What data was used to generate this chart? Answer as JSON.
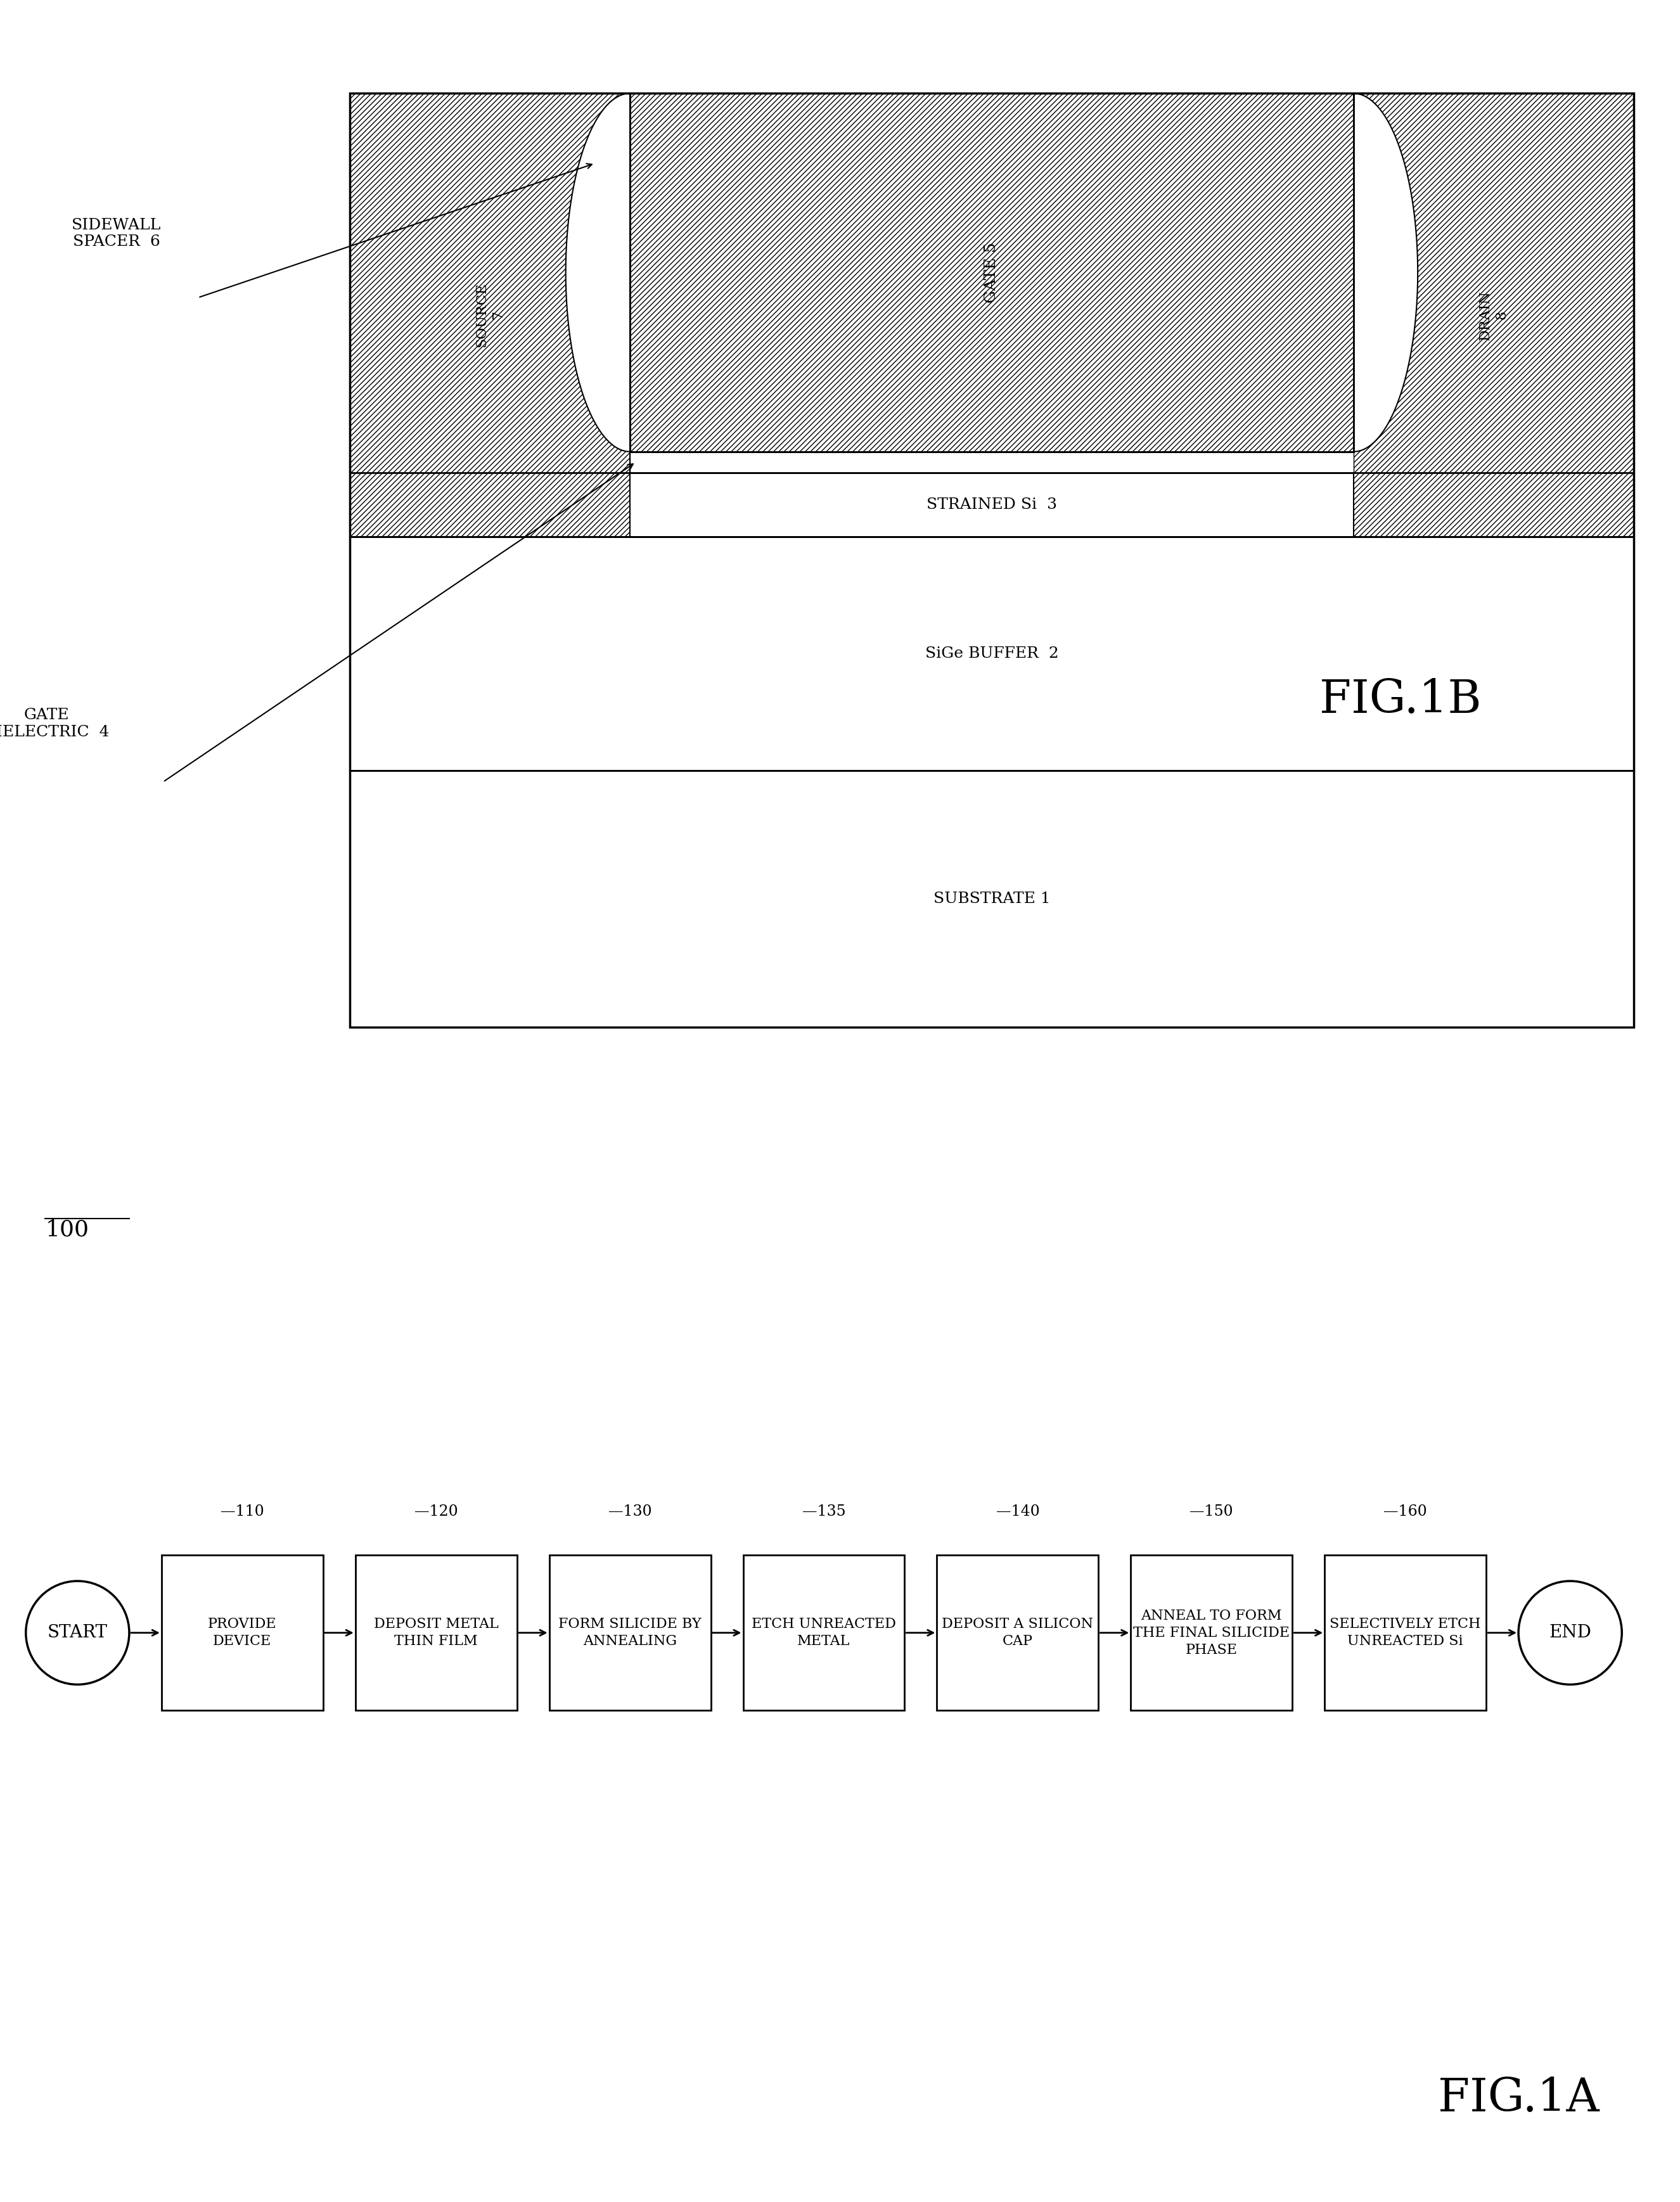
{
  "fig_width": 26.51,
  "fig_height": 34.75,
  "bg_color": "#ffffff",
  "flow_steps": [
    {
      "id": "110",
      "label": "PROVIDE\nDEVICE"
    },
    {
      "id": "120",
      "label": "DEPOSIT METAL\nTHIN FILM"
    },
    {
      "id": "130",
      "label": "FORM SILICIDE BY\nANNEALING"
    },
    {
      "id": "135",
      "label": "ETCH UNREACTED\nMETAL"
    },
    {
      "id": "140",
      "label": "DEPOSIT A SILICON\nCAP"
    },
    {
      "id": "150",
      "label": "ANNEAL TO FORM\nTHE FINAL SILICIDE\nPHASE"
    },
    {
      "id": "160",
      "label": "SELECTIVELY ETCH\nUNREACTED Si"
    }
  ],
  "fig1a_label": "FIG.1A",
  "fig1b_label": "FIG.1B",
  "flow_label": "100",
  "label_fs": 18,
  "ref_fs": 17,
  "figb_fs": 52
}
